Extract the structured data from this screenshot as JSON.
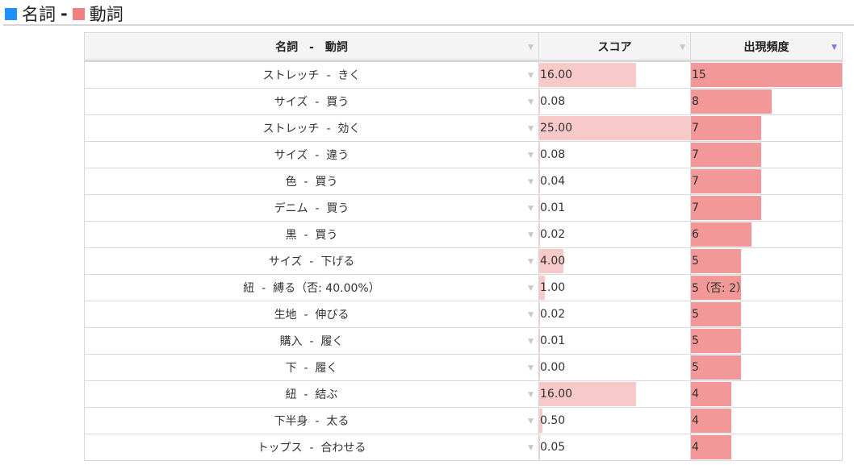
{
  "legend": {
    "noun_label": "名詞",
    "separator": "-",
    "verb_label": "動詞",
    "noun_color": "#1e90ff",
    "verb_color": "#f08080"
  },
  "table": {
    "headers": {
      "pair": "名詞　-　動詞",
      "score": "スコア",
      "freq": "出現頻度"
    },
    "sort_column": "freq",
    "score_max": 25,
    "freq_max": 15,
    "rows": [
      {
        "noun": "ストレッチ",
        "verb": "きく",
        "score": "16.00",
        "score_value": 16,
        "freq": "15",
        "freq_value": 15
      },
      {
        "noun": "サイズ",
        "verb": "買う",
        "score": "0.08",
        "score_value": 0.08,
        "freq": "8",
        "freq_value": 8
      },
      {
        "noun": "ストレッチ",
        "verb": "効く",
        "score": "25.00",
        "score_value": 25,
        "freq": "7",
        "freq_value": 7
      },
      {
        "noun": "サイズ",
        "verb": "違う",
        "score": "0.08",
        "score_value": 0.08,
        "freq": "7",
        "freq_value": 7
      },
      {
        "noun": "色",
        "verb": "買う",
        "score": "0.04",
        "score_value": 0.04,
        "freq": "7",
        "freq_value": 7
      },
      {
        "noun": "デニム",
        "verb": "買う",
        "score": "0.01",
        "score_value": 0.01,
        "freq": "7",
        "freq_value": 7
      },
      {
        "noun": "黒",
        "verb": "買う",
        "score": "0.02",
        "score_value": 0.02,
        "freq": "6",
        "freq_value": 6
      },
      {
        "noun": "サイズ",
        "verb": "下げる",
        "score": "4.00",
        "score_value": 4,
        "freq": "5",
        "freq_value": 5
      },
      {
        "noun": "紐",
        "verb": "縛る（否: 40.00%）",
        "score": "1.00",
        "score_value": 1,
        "freq": "5（否: 2）",
        "freq_value": 5
      },
      {
        "noun": "生地",
        "verb": "伸びる",
        "score": "0.02",
        "score_value": 0.02,
        "freq": "5",
        "freq_value": 5
      },
      {
        "noun": "購入",
        "verb": "履く",
        "score": "0.01",
        "score_value": 0.01,
        "freq": "5",
        "freq_value": 5
      },
      {
        "noun": "下",
        "verb": "履く",
        "score": "0.00",
        "score_value": 0,
        "freq": "5",
        "freq_value": 5
      },
      {
        "noun": "紐",
        "verb": "結ぶ",
        "score": "16.00",
        "score_value": 16,
        "freq": "4",
        "freq_value": 4
      },
      {
        "noun": "下半身",
        "verb": "太る",
        "score": "0.50",
        "score_value": 0.5,
        "freq": "4",
        "freq_value": 4
      },
      {
        "noun": "トップス",
        "verb": "合わせる",
        "score": "0.05",
        "score_value": 0.05,
        "freq": "4",
        "freq_value": 4
      }
    ]
  }
}
